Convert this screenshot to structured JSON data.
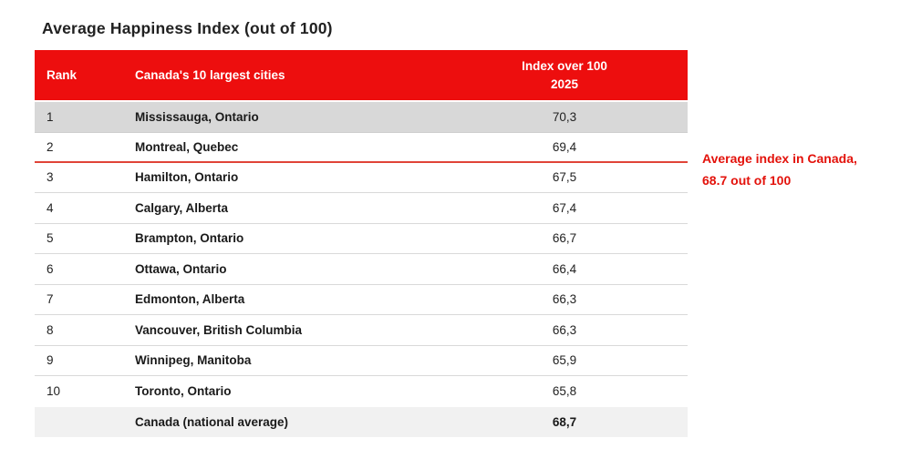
{
  "title": "Average Happiness Index (out of 100)",
  "table": {
    "header": {
      "rank": "Rank",
      "cities": "Canada's 10 largest cities",
      "index_line1": "Index over 100",
      "index_line2": "2025"
    },
    "rows": [
      {
        "rank": "1",
        "city": "Mississauga, Ontario",
        "value": "70,3",
        "highlight": true,
        "red_divider": false
      },
      {
        "rank": "2",
        "city": "Montreal, Quebec",
        "value": "69,4",
        "highlight": false,
        "red_divider": true
      },
      {
        "rank": "3",
        "city": "Hamilton, Ontario",
        "value": "67,5",
        "highlight": false,
        "red_divider": false
      },
      {
        "rank": "4",
        "city": "Calgary, Alberta",
        "value": "67,4",
        "highlight": false,
        "red_divider": false
      },
      {
        "rank": "5",
        "city": "Brampton, Ontario",
        "value": "66,7",
        "highlight": false,
        "red_divider": false
      },
      {
        "rank": "6",
        "city": "Ottawa, Ontario",
        "value": "66,4",
        "highlight": false,
        "red_divider": false
      },
      {
        "rank": "7",
        "city": "Edmonton, Alberta",
        "value": "66,3",
        "highlight": false,
        "red_divider": false
      },
      {
        "rank": "8",
        "city": "Vancouver, British Columbia",
        "value": "66,3",
        "highlight": false,
        "red_divider": false
      },
      {
        "rank": "9",
        "city": "Winnipeg, Manitoba",
        "value": "65,9",
        "highlight": false,
        "red_divider": false
      },
      {
        "rank": "10",
        "city": "Toronto, Ontario",
        "value": "65,8",
        "highlight": false,
        "red_divider": false
      }
    ],
    "footer": {
      "label": "Canada (national average)",
      "value": "68,7"
    }
  },
  "annotation": {
    "line1": "Average index in Canada,",
    "line2": "68.7 out of 100"
  },
  "colors": {
    "header_bg": "#ED0E0E",
    "header_text": "#FFFFFF",
    "highlight_row_bg": "#D8D8D8",
    "footer_bg": "#F1F1F1",
    "row_divider": "#D9D9D9",
    "average_divider": "#E04438",
    "annotation_text": "#E3120B",
    "title_text": "#212121"
  },
  "chart_data": {
    "type": "table",
    "title": "Average Happiness Index (out of 100)",
    "columns": [
      "Rank",
      "Canada's 10 largest cities",
      "Index over 100 2025"
    ],
    "rows": [
      [
        1,
        "Mississauga, Ontario",
        70.3
      ],
      [
        2,
        "Montreal, Quebec",
        69.4
      ],
      [
        3,
        "Hamilton, Ontario",
        67.5
      ],
      [
        4,
        "Calgary, Alberta",
        67.4
      ],
      [
        5,
        "Brampton, Ontario",
        66.7
      ],
      [
        6,
        "Ottawa, Ontario",
        66.4
      ],
      [
        7,
        "Edmonton, Alberta",
        66.3
      ],
      [
        8,
        "Vancouver, British Columbia",
        66.3
      ],
      [
        9,
        "Winnipeg, Manitoba",
        65.9
      ],
      [
        10,
        "Toronto, Ontario",
        65.8
      ]
    ],
    "footer_row": [
      "",
      "Canada (national average)",
      68.7
    ],
    "national_average": 68.7,
    "annotation": "Average index in Canada, 68.7 out of 100",
    "notes": "Red divider line after rank 2 marks where the national average (68.7) falls; rank 1 row is highlighted gray; table values use comma decimals."
  }
}
